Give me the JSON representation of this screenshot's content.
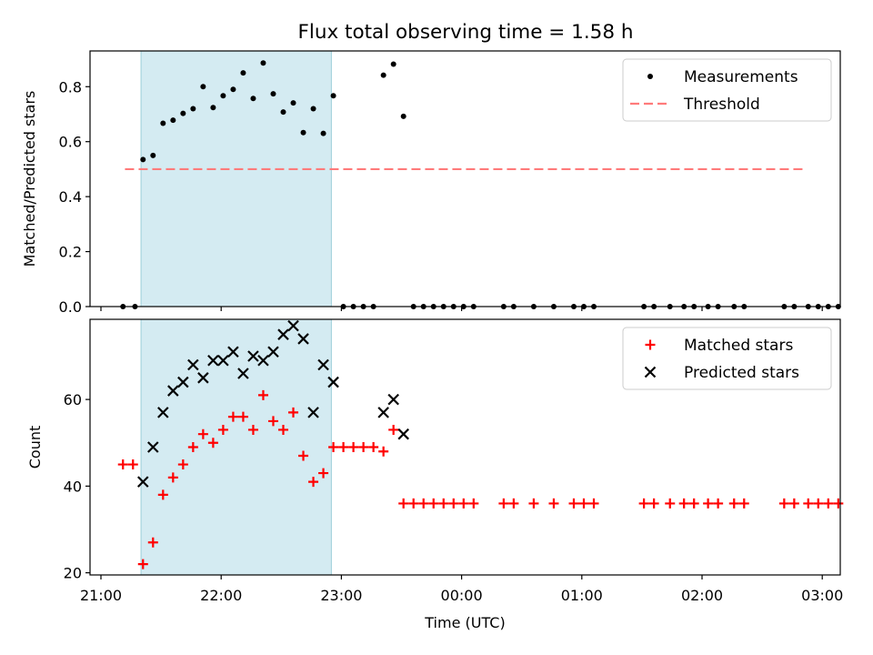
{
  "chart_data": [
    {
      "type": "scatter",
      "title": "Flux total observing time = 1.58 h",
      "ylabel": "Matched/Predicted stars",
      "xlabel": "",
      "xlim": [
        "21:00",
        "03:00"
      ],
      "ylim": [
        0,
        0.93
      ],
      "yticks": [
        {
          "value": 0.0,
          "label": "0.0"
        },
        {
          "value": 0.2,
          "label": "0.2"
        },
        {
          "value": 0.4,
          "label": "0.4"
        },
        {
          "value": 0.6,
          "label": "0.6"
        },
        {
          "value": 0.8,
          "label": "0.8"
        }
      ],
      "shaded_interval": [
        "21:20",
        "22:55"
      ],
      "shade_color": "#add8e6",
      "legend": "top-right",
      "series": [
        {
          "name": "Measurements",
          "marker": "dot",
          "color": "#000000",
          "points": [
            [
              "21:11",
              0.0
            ],
            [
              "21:17",
              0.0
            ],
            [
              "21:21",
              0.535
            ],
            [
              "21:26",
              0.55
            ],
            [
              "21:31",
              0.667
            ],
            [
              "21:36",
              0.678
            ],
            [
              "21:41",
              0.703
            ],
            [
              "21:46",
              0.72
            ],
            [
              "21:51",
              0.8
            ],
            [
              "21:56",
              0.724
            ],
            [
              "22:01",
              0.767
            ],
            [
              "22:06",
              0.79
            ],
            [
              "22:11",
              0.85
            ],
            [
              "22:16",
              0.757
            ],
            [
              "22:21",
              0.886
            ],
            [
              "22:26",
              0.774
            ],
            [
              "22:31",
              0.708
            ],
            [
              "22:36",
              0.741
            ],
            [
              "22:41",
              0.633
            ],
            [
              "22:46",
              0.72
            ],
            [
              "22:51",
              0.63
            ],
            [
              "22:56",
              0.767
            ],
            [
              "23:01",
              0.0
            ],
            [
              "23:06",
              0.0
            ],
            [
              "23:11",
              0.0
            ],
            [
              "23:16",
              0.0
            ],
            [
              "23:21",
              0.842
            ],
            [
              "23:26",
              0.882
            ],
            [
              "23:31",
              0.692
            ],
            [
              "23:36",
              0.0
            ],
            [
              "23:41",
              0.0
            ],
            [
              "23:46",
              0.0
            ],
            [
              "23:51",
              0.0
            ],
            [
              "23:56",
              0.0
            ],
            [
              "00:01",
              0.0
            ],
            [
              "00:06",
              0.0
            ],
            [
              "00:21",
              0.0
            ],
            [
              "00:26",
              0.0
            ],
            [
              "00:36",
              0.0
            ],
            [
              "00:46",
              0.0
            ],
            [
              "00:56",
              0.0
            ],
            [
              "01:01",
              0.0
            ],
            [
              "01:06",
              0.0
            ],
            [
              "01:31",
              0.0
            ],
            [
              "01:36",
              0.0
            ],
            [
              "01:44",
              0.0
            ],
            [
              "01:51",
              0.0
            ],
            [
              "01:56",
              0.0
            ],
            [
              "02:03",
              0.0
            ],
            [
              "02:08",
              0.0
            ],
            [
              "02:16",
              0.0
            ],
            [
              "02:21",
              0.0
            ],
            [
              "02:41",
              0.0
            ],
            [
              "02:46",
              0.0
            ],
            [
              "02:53",
              0.0
            ],
            [
              "02:58",
              0.0
            ],
            [
              "03:03",
              0.0
            ],
            [
              "03:08",
              0.0
            ]
          ]
        },
        {
          "name": "Threshold",
          "marker": "dashed-line",
          "color": "#ff7b7b",
          "points": [
            [
              "21:12",
              0.5
            ],
            [
              "02:51",
              0.5
            ]
          ]
        }
      ]
    },
    {
      "type": "scatter",
      "title": "",
      "ylabel": "Count",
      "xlabel": "Time (UTC)",
      "xlim": [
        "21:00",
        "03:00"
      ],
      "ylim": [
        19.5,
        78.5
      ],
      "yticks": [
        {
          "value": 20,
          "label": "20"
        },
        {
          "value": 40,
          "label": "40"
        },
        {
          "value": 60,
          "label": "60"
        }
      ],
      "xticks": [
        {
          "value": "21:00",
          "label": "21:00"
        },
        {
          "value": "22:00",
          "label": "22:00"
        },
        {
          "value": "23:00",
          "label": "23:00"
        },
        {
          "value": "00:00",
          "label": "00:00"
        },
        {
          "value": "01:00",
          "label": "01:00"
        },
        {
          "value": "02:00",
          "label": "02:00"
        },
        {
          "value": "03:00",
          "label": "03:00"
        }
      ],
      "shaded_interval": [
        "21:20",
        "22:55"
      ],
      "shade_color": "#add8e6",
      "legend": "top-right",
      "series": [
        {
          "name": "Matched stars",
          "marker": "plus",
          "color": "#ff0000",
          "points": [
            [
              "21:11",
              45
            ],
            [
              "21:16",
              45
            ],
            [
              "21:21",
              22
            ],
            [
              "21:26",
              27
            ],
            [
              "21:31",
              38
            ],
            [
              "21:36",
              42
            ],
            [
              "21:41",
              45
            ],
            [
              "21:46",
              49
            ],
            [
              "21:51",
              52
            ],
            [
              "21:56",
              50
            ],
            [
              "22:01",
              53
            ],
            [
              "22:06",
              56
            ],
            [
              "22:11",
              56
            ],
            [
              "22:16",
              53
            ],
            [
              "22:21",
              61
            ],
            [
              "22:26",
              55
            ],
            [
              "22:31",
              53
            ],
            [
              "22:36",
              57
            ],
            [
              "22:41",
              47
            ],
            [
              "22:46",
              41
            ],
            [
              "22:51",
              43
            ],
            [
              "22:56",
              49
            ],
            [
              "23:01",
              49
            ],
            [
              "23:06",
              49
            ],
            [
              "23:11",
              49
            ],
            [
              "23:16",
              49
            ],
            [
              "23:21",
              48
            ],
            [
              "23:26",
              53
            ],
            [
              "23:31",
              36
            ],
            [
              "23:36",
              36
            ],
            [
              "23:41",
              36
            ],
            [
              "23:46",
              36
            ],
            [
              "23:51",
              36
            ],
            [
              "23:56",
              36
            ],
            [
              "00:01",
              36
            ],
            [
              "00:06",
              36
            ],
            [
              "00:21",
              36
            ],
            [
              "00:26",
              36
            ],
            [
              "00:36",
              36
            ],
            [
              "00:46",
              36
            ],
            [
              "00:56",
              36
            ],
            [
              "01:01",
              36
            ],
            [
              "01:06",
              36
            ],
            [
              "01:31",
              36
            ],
            [
              "01:36",
              36
            ],
            [
              "01:44",
              36
            ],
            [
              "01:51",
              36
            ],
            [
              "01:56",
              36
            ],
            [
              "02:03",
              36
            ],
            [
              "02:08",
              36
            ],
            [
              "02:16",
              36
            ],
            [
              "02:21",
              36
            ],
            [
              "02:41",
              36
            ],
            [
              "02:46",
              36
            ],
            [
              "02:53",
              36
            ],
            [
              "02:58",
              36
            ],
            [
              "03:03",
              36
            ],
            [
              "03:08",
              36
            ]
          ]
        },
        {
          "name": "Predicted stars",
          "marker": "x",
          "color": "#000000",
          "points": [
            [
              "21:21",
              41
            ],
            [
              "21:26",
              49
            ],
            [
              "21:31",
              57
            ],
            [
              "21:36",
              62
            ],
            [
              "21:41",
              64
            ],
            [
              "21:46",
              68
            ],
            [
              "21:51",
              65
            ],
            [
              "21:56",
              69
            ],
            [
              "22:01",
              69
            ],
            [
              "22:06",
              71
            ],
            [
              "22:11",
              66
            ],
            [
              "22:16",
              70
            ],
            [
              "22:21",
              69
            ],
            [
              "22:26",
              71
            ],
            [
              "22:31",
              75
            ],
            [
              "22:36",
              77
            ],
            [
              "22:41",
              74
            ],
            [
              "22:46",
              57
            ],
            [
              "22:51",
              68
            ],
            [
              "22:56",
              64
            ],
            [
              "23:21",
              57
            ],
            [
              "23:26",
              60
            ],
            [
              "23:31",
              52
            ]
          ]
        }
      ]
    }
  ]
}
